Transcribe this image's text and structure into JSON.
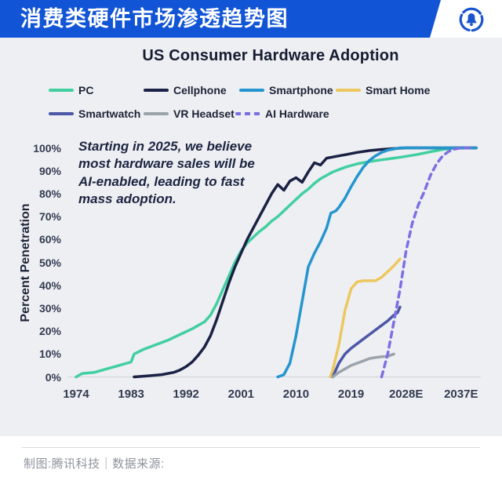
{
  "header": {
    "title": "消费类硬件市场渗透趋势图",
    "logo_icon": "bell-in-circle-logo"
  },
  "footer": {
    "credit": "制图:腾讯科技｜数据来源:"
  },
  "colors": {
    "banner_blue": "#1154d6",
    "logo_blue": "#1a55cf",
    "page_background": "#edeff3",
    "axis_text": "#333b50",
    "baseline": "#d6d8dd"
  },
  "chart_data": {
    "type": "line",
    "title": "US Consumer Hardware Adoption",
    "xlabel": "",
    "ylabel": "Percent Penetration",
    "annotation": "Starting in 2025, we believe\nmost hardware sales will be\nAI-enabled, leading to fast\nmass adoption.",
    "xlim": [
      1972,
      2040
    ],
    "ylim": [
      0,
      100
    ],
    "grid": false,
    "legend_position": "top",
    "x_ticks": [
      {
        "label": "1974",
        "value": 1974
      },
      {
        "label": "1983",
        "value": 1983
      },
      {
        "label": "1992",
        "value": 1992
      },
      {
        "label": "2001",
        "value": 2001
      },
      {
        "label": "2010",
        "value": 2010
      },
      {
        "label": "2019",
        "value": 2019
      },
      {
        "label": "2028E",
        "value": 2028
      },
      {
        "label": "2037E",
        "value": 2037
      }
    ],
    "y_ticks": [
      {
        "label": "100%",
        "value": 100
      },
      {
        "label": "90%",
        "value": 90
      },
      {
        "label": "80%",
        "value": 80
      },
      {
        "label": "70%",
        "value": 70
      },
      {
        "label": "60%",
        "value": 60
      },
      {
        "label": "50%",
        "value": 50
      },
      {
        "label": "40%",
        "value": 40
      },
      {
        "label": "30%",
        "value": 30
      },
      {
        "label": "20%",
        "value": 20
      },
      {
        "label": "10%",
        "value": 10
      },
      {
        "label": "0%",
        "value": 0
      }
    ],
    "series": [
      {
        "name": "PC",
        "slug": "pc",
        "color": "#42cfa0",
        "dashed": false,
        "points": [
          [
            1974,
            0
          ],
          [
            1975,
            1.5
          ],
          [
            1977,
            2
          ],
          [
            1979,
            3.5
          ],
          [
            1981,
            5
          ],
          [
            1983,
            6.5
          ],
          [
            1983.5,
            10
          ],
          [
            1985,
            12
          ],
          [
            1987,
            14
          ],
          [
            1989,
            16
          ],
          [
            1991,
            18.5
          ],
          [
            1993,
            21
          ],
          [
            1995,
            24
          ],
          [
            1996,
            27
          ],
          [
            1997,
            32
          ],
          [
            1998,
            38
          ],
          [
            1999,
            44
          ],
          [
            2000,
            50
          ],
          [
            2001,
            55
          ],
          [
            2002,
            58.5
          ],
          [
            2003,
            61
          ],
          [
            2004,
            63.5
          ],
          [
            2005,
            65.5
          ],
          [
            2006,
            68
          ],
          [
            2007,
            70
          ],
          [
            2008,
            72.5
          ],
          [
            2009,
            75
          ],
          [
            2010,
            77.5
          ],
          [
            2011,
            80
          ],
          [
            2012,
            82
          ],
          [
            2013,
            84.5
          ],
          [
            2014,
            86.5
          ],
          [
            2015,
            88
          ],
          [
            2016,
            89.5
          ],
          [
            2017,
            90.5
          ],
          [
            2018,
            91.5
          ],
          [
            2019,
            92.3
          ],
          [
            2020,
            93
          ],
          [
            2022,
            94
          ],
          [
            2024,
            94.8
          ],
          [
            2026,
            95.5
          ],
          [
            2028,
            96.3
          ],
          [
            2030,
            97.2
          ],
          [
            2032,
            98.3
          ],
          [
            2034,
            99.3
          ],
          [
            2036,
            100
          ],
          [
            2039.5,
            100
          ]
        ]
      },
      {
        "name": "Cellphone",
        "slug": "cellphone",
        "color": "#1b2144",
        "dashed": false,
        "points": [
          [
            1983.5,
            0
          ],
          [
            1986,
            0.5
          ],
          [
            1988,
            1
          ],
          [
            1990,
            2
          ],
          [
            1991,
            3
          ],
          [
            1992,
            4.5
          ],
          [
            1993,
            6.5
          ],
          [
            1994,
            9.5
          ],
          [
            1995,
            13
          ],
          [
            1996,
            18
          ],
          [
            1997,
            25
          ],
          [
            1998,
            33
          ],
          [
            1999,
            41
          ],
          [
            2000,
            48
          ],
          [
            2001,
            54
          ],
          [
            2002,
            60
          ],
          [
            2003,
            65
          ],
          [
            2004,
            70
          ],
          [
            2005,
            75
          ],
          [
            2006,
            80
          ],
          [
            2007,
            84
          ],
          [
            2008,
            81.5
          ],
          [
            2009,
            85.5
          ],
          [
            2010,
            87
          ],
          [
            2011,
            85
          ],
          [
            2012,
            89.5
          ],
          [
            2013,
            93.5
          ],
          [
            2014,
            92.5
          ],
          [
            2015,
            95.5
          ],
          [
            2016,
            96
          ],
          [
            2017,
            96.5
          ],
          [
            2018,
            97
          ],
          [
            2020,
            98
          ],
          [
            2022,
            98.8
          ],
          [
            2024,
            99.3
          ],
          [
            2026,
            99.7
          ],
          [
            2028,
            100
          ],
          [
            2039.5,
            100
          ]
        ]
      },
      {
        "name": "Smartphone",
        "slug": "smartphone",
        "color": "#2595cf",
        "dashed": false,
        "points": [
          [
            2007,
            0
          ],
          [
            2008,
            1
          ],
          [
            2009,
            6
          ],
          [
            2010,
            18
          ],
          [
            2011,
            33
          ],
          [
            2012,
            48
          ],
          [
            2013,
            54
          ],
          [
            2014,
            59
          ],
          [
            2015,
            65
          ],
          [
            2015.7,
            71.5
          ],
          [
            2016.5,
            72.5
          ],
          [
            2017,
            74
          ],
          [
            2018,
            78
          ],
          [
            2019,
            83
          ],
          [
            2020,
            87.5
          ],
          [
            2021,
            91.5
          ],
          [
            2022,
            94.5
          ],
          [
            2023,
            96.5
          ],
          [
            2024,
            98
          ],
          [
            2025,
            99
          ],
          [
            2027,
            100
          ],
          [
            2039.5,
            100
          ]
        ]
      },
      {
        "name": "Smart Home",
        "slug": "smart-home",
        "color": "#edc75e",
        "dashed": false,
        "points": [
          [
            2015.6,
            0
          ],
          [
            2016,
            3
          ],
          [
            2017,
            14
          ],
          [
            2018,
            29
          ],
          [
            2019,
            38.5
          ],
          [
            2020,
            41.5
          ],
          [
            2021,
            42
          ],
          [
            2022,
            42
          ],
          [
            2023,
            42
          ],
          [
            2024,
            43.5
          ],
          [
            2025,
            46
          ],
          [
            2026,
            48.5
          ],
          [
            2027,
            51.5
          ]
        ]
      },
      {
        "name": "Smartwatch",
        "slug": "smartwatch",
        "color": "#4c57a7",
        "dashed": false,
        "points": [
          [
            2016,
            0
          ],
          [
            2017,
            6
          ],
          [
            2018,
            10
          ],
          [
            2019,
            12.5
          ],
          [
            2020,
            14.5
          ],
          [
            2021,
            16.5
          ],
          [
            2022,
            18.5
          ],
          [
            2023,
            20.5
          ],
          [
            2024,
            22.5
          ],
          [
            2025,
            24.5
          ],
          [
            2026,
            27
          ],
          [
            2026.6,
            28
          ],
          [
            2027,
            30.5
          ]
        ]
      },
      {
        "name": "VR Headset",
        "slug": "vr-headset",
        "color": "#9ba3ab",
        "dashed": false,
        "points": [
          [
            2016,
            0
          ],
          [
            2017,
            2
          ],
          [
            2018,
            3.5
          ],
          [
            2019,
            5
          ],
          [
            2020,
            6
          ],
          [
            2021,
            7
          ],
          [
            2022,
            8
          ],
          [
            2023,
            8.5
          ],
          [
            2024,
            8.8
          ],
          [
            2025,
            9
          ],
          [
            2026,
            10
          ]
        ]
      },
      {
        "name": "AI Hardware",
        "slug": "ai-hardware",
        "color": "#7b6fe3",
        "dashed": true,
        "points": [
          [
            2024,
            0
          ],
          [
            2025,
            10
          ],
          [
            2026,
            24
          ],
          [
            2027,
            38
          ],
          [
            2028,
            55
          ],
          [
            2029,
            67
          ],
          [
            2030,
            75
          ],
          [
            2031,
            81
          ],
          [
            2032,
            88
          ],
          [
            2033,
            93
          ],
          [
            2034,
            96.5
          ],
          [
            2035,
            98.5
          ],
          [
            2036,
            99.5
          ],
          [
            2037,
            100
          ],
          [
            2039,
            100
          ]
        ]
      }
    ]
  }
}
